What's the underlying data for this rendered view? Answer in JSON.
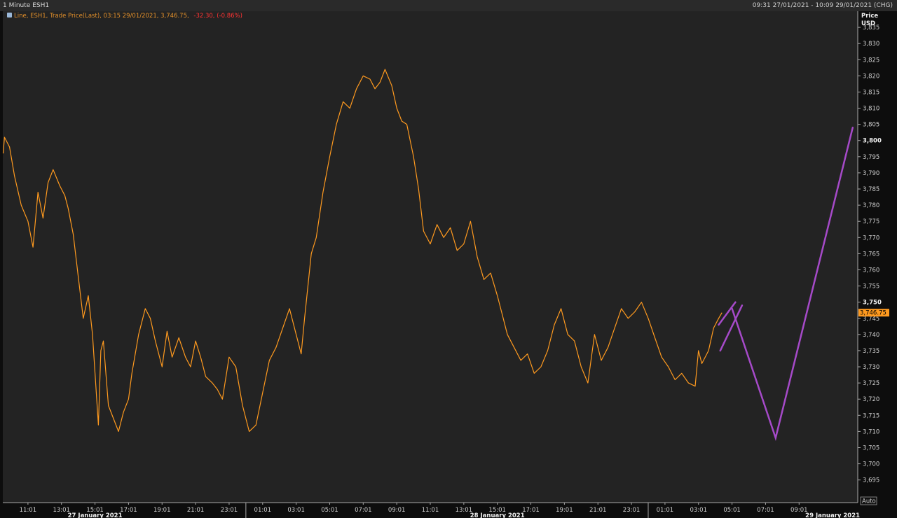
{
  "header": {
    "title": "1 Minute ESH1",
    "range": "09:31 27/01/2021 - 10:09 29/01/2021 (CHG)"
  },
  "legend": {
    "text_main": "Line, ESH1, Trade Price(Last), 03:15 29/01/2021, 3,746.75,",
    "text_change": "-32.30, (-0.86%)",
    "text_color": "#e3902a",
    "change_color": "#ff3333"
  },
  "axis_header": {
    "line1": "Price",
    "line2": "USD"
  },
  "auto_button": "Auto",
  "price_label": "3,746.75",
  "colors": {
    "price_line": "#ff9a1f",
    "annotation": "#a64ac9",
    "plot_bg": "#232323",
    "grid": "#3a3a3a"
  },
  "chart_data": {
    "type": "line",
    "title": "1 Minute ESH1",
    "ylabel": "Price USD",
    "ylim": [
      3688,
      3840
    ],
    "y_ticks": [
      "3,695",
      "3,700",
      "3,705",
      "3,710",
      "3,715",
      "3,720",
      "3,725",
      "3,730",
      "3,735",
      "3,740",
      "3,745",
      "3,750",
      "3,755",
      "3,760",
      "3,765",
      "3,770",
      "3,775",
      "3,780",
      "3,785",
      "3,790",
      "3,795",
      "3,800",
      "3,805",
      "3,810",
      "3,815",
      "3,820",
      "3,825",
      "3,830",
      "3,835"
    ],
    "bold_y_ticks": [
      "3,750",
      "3,800"
    ],
    "x_tick_hours": [
      11,
      13,
      15,
      17,
      19,
      21,
      23,
      25,
      27,
      29,
      31,
      33,
      35,
      37,
      39,
      41,
      43,
      45,
      47,
      49,
      51,
      53,
      55,
      57
    ],
    "x_ticks": [
      "11:01",
      "13:01",
      "15:01",
      "17:01",
      "19:01",
      "21:01",
      "23:01",
      "01:01",
      "03:01",
      "05:01",
      "07:01",
      "09:01",
      "11:01",
      "13:01",
      "15:01",
      "17:01",
      "19:01",
      "21:01",
      "23:01",
      "01:01",
      "03:01",
      "05:01",
      "07:01",
      "09:01"
    ],
    "date_labels": [
      {
        "text": "27 January 2021",
        "hour": 15
      },
      {
        "text": "28 January 2021",
        "hour": 39
      },
      {
        "text": "29 January 2021",
        "hour": 59
      }
    ],
    "series": [
      {
        "x_hours": [
          9.52,
          9.6,
          9.9,
          10.2,
          10.6,
          11.0,
          11.3,
          11.6,
          11.9,
          12.2,
          12.5,
          12.9,
          13.2,
          13.4,
          13.7,
          14.0,
          14.3,
          14.6,
          14.85,
          15.0,
          15.2,
          15.35,
          15.5,
          15.8,
          16.1,
          16.4,
          16.7,
          17.0,
          17.2,
          17.6,
          18.0,
          18.3,
          18.6,
          19.0,
          19.3,
          19.6,
          20.0,
          20.4,
          20.7,
          21.0,
          21.3,
          21.6,
          22.0,
          22.3,
          22.6,
          23.0,
          23.4,
          23.8,
          24.2,
          24.6,
          25.0,
          25.4,
          25.8,
          26.2,
          26.6,
          27.0,
          27.3,
          27.5,
          27.9,
          28.2,
          28.6,
          29.0,
          29.4,
          29.8,
          30.2,
          30.6,
          31.0,
          31.4,
          31.7,
          32.0,
          32.3,
          32.7,
          33.0,
          33.3,
          33.6,
          34.0,
          34.3,
          34.6,
          35.0,
          35.4,
          35.8,
          36.2,
          36.6,
          37.0,
          37.4,
          37.8,
          38.2,
          38.6,
          39.0,
          39.3,
          39.6,
          40.0,
          40.4,
          40.8,
          41.2,
          41.6,
          42.0,
          42.4,
          42.8,
          43.2,
          43.6,
          44.0,
          44.4,
          44.8,
          45.2,
          45.6,
          46.0,
          46.4,
          46.8,
          47.2,
          47.6,
          48.0,
          48.4,
          48.8,
          49.2,
          49.6,
          50.0,
          50.4,
          50.8,
          51.0,
          51.2,
          51.6,
          51.9,
          52.2,
          52.4
        ],
        "values": [
          3796,
          3801,
          3798,
          3789,
          3780,
          3775,
          3767,
          3784,
          3776,
          3787,
          3791,
          3786,
          3783,
          3779,
          3771,
          3758,
          3745,
          3752,
          3740,
          3728,
          3712,
          3735,
          3738,
          3718,
          3714,
          3710,
          3716,
          3720,
          3728,
          3740,
          3748,
          3745,
          3738,
          3730,
          3741,
          3733,
          3739,
          3733,
          3730,
          3738,
          3733,
          3727,
          3725,
          3723,
          3720,
          3733,
          3730,
          3718,
          3710,
          3712,
          3722,
          3732,
          3736,
          3742,
          3748,
          3740,
          3734,
          3745,
          3765,
          3770,
          3784,
          3795,
          3805,
          3812,
          3810,
          3816,
          3820,
          3819,
          3816,
          3818,
          3822,
          3817,
          3810,
          3806,
          3805,
          3795,
          3785,
          3772,
          3768,
          3774,
          3770,
          3773,
          3766,
          3768,
          3775,
          3764,
          3757,
          3759,
          3752,
          3746,
          3740,
          3736,
          3732,
          3734,
          3728,
          3730,
          3735,
          3743,
          3748,
          3740,
          3738,
          3730,
          3725,
          3740,
          3732,
          3736,
          3742,
          3748,
          3745,
          3747,
          3750,
          3745,
          3739,
          3733,
          3730,
          3726,
          3728,
          3725,
          3724,
          3735,
          3731,
          3735,
          3742,
          3745,
          3746.75
        ]
      }
    ],
    "annotations": [
      {
        "x_hours": [
          52.2,
          53.2
        ],
        "values": [
          3743,
          3750
        ]
      },
      {
        "x_hours": [
          52.3,
          53.6
        ],
        "values": [
          3735,
          3749
        ]
      },
      {
        "x_hours": [
          53.0,
          55.6,
          60.2
        ],
        "values": [
          3748,
          3708,
          3804
        ]
      }
    ]
  }
}
